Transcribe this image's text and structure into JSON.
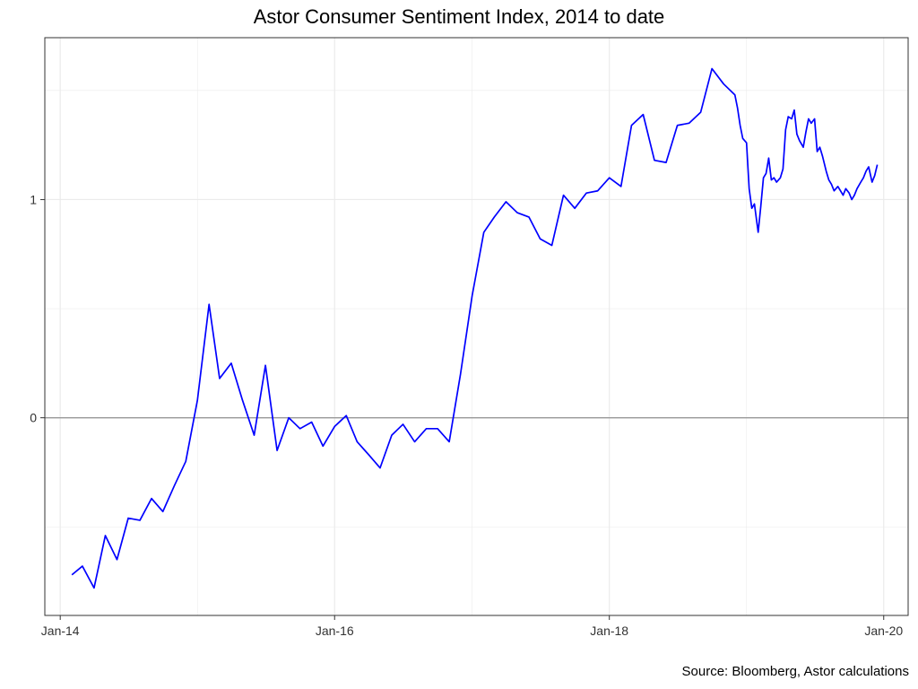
{
  "chart_data": {
    "type": "line",
    "title": "Astor Consumer Sentiment Index, 2014 to date",
    "source": "Source: Bloomberg, Astor calculations",
    "xlabel": "",
    "ylabel": "",
    "x_ticks": [
      {
        "label": "Jan-14",
        "date": "2014-01-01"
      },
      {
        "label": "Jan-16",
        "date": "2016-01-01"
      },
      {
        "label": "Jan-18",
        "date": "2018-01-01"
      },
      {
        "label": "Jan-20",
        "date": "2020-01-01"
      }
    ],
    "y_ticks": [
      {
        "label": "0",
        "value": 0
      },
      {
        "label": "1",
        "value": 1
      }
    ],
    "xlim": [
      "2013-11-21",
      "2020-03-06"
    ],
    "ylim": [
      -0.906,
      1.742
    ],
    "grid": true,
    "reference_line": 0,
    "colors": {
      "line": "#0000ff",
      "zero_line": "#999999",
      "grid": "#ebebeb",
      "axis": "#333333"
    },
    "series": [
      {
        "name": "",
        "x": [
          "2014-02-01",
          "2014-03-01",
          "2014-04-01",
          "2014-05-01",
          "2014-06-01",
          "2014-07-01",
          "2014-08-01",
          "2014-09-01",
          "2014-10-01",
          "2014-11-01",
          "2014-12-01",
          "2015-01-01",
          "2015-02-01",
          "2015-03-01",
          "2015-04-01",
          "2015-05-01",
          "2015-06-01",
          "2015-07-01",
          "2015-08-01",
          "2015-09-01",
          "2015-10-01",
          "2015-11-01",
          "2015-12-01",
          "2016-01-01",
          "2016-02-01",
          "2016-03-01",
          "2016-04-01",
          "2016-05-01",
          "2016-06-01",
          "2016-07-01",
          "2016-08-01",
          "2016-09-01",
          "2016-10-01",
          "2016-11-01",
          "2016-12-01",
          "2017-01-01",
          "2017-02-01",
          "2017-03-01",
          "2017-04-01",
          "2017-05-01",
          "2017-06-01",
          "2017-07-01",
          "2017-08-01",
          "2017-09-01",
          "2017-10-01",
          "2017-11-01",
          "2017-12-01",
          "2018-01-01",
          "2018-02-01",
          "2018-03-01",
          "2018-04-01",
          "2018-05-01",
          "2018-06-01",
          "2018-07-01",
          "2018-08-01",
          "2018-09-01",
          "2018-10-01",
          "2018-11-01",
          "2018-12-01",
          "2018-12-08",
          "2018-12-15",
          "2018-12-22",
          "2019-01-01",
          "2019-01-08",
          "2019-01-15",
          "2019-01-22",
          "2019-02-01",
          "2019-02-08",
          "2019-02-15",
          "2019-02-22",
          "2019-03-01",
          "2019-03-08",
          "2019-03-15",
          "2019-03-22",
          "2019-04-01",
          "2019-04-08",
          "2019-04-15",
          "2019-04-22",
          "2019-05-01",
          "2019-05-08",
          "2019-05-15",
          "2019-05-22",
          "2019-06-01",
          "2019-06-08",
          "2019-06-15",
          "2019-06-22",
          "2019-07-01",
          "2019-07-08",
          "2019-07-15",
          "2019-07-22",
          "2019-08-01",
          "2019-08-08",
          "2019-08-15",
          "2019-08-22",
          "2019-09-01",
          "2019-09-08",
          "2019-09-15",
          "2019-09-22",
          "2019-10-01",
          "2019-10-08",
          "2019-10-15",
          "2019-10-22",
          "2019-11-01",
          "2019-11-08",
          "2019-11-15",
          "2019-11-22",
          "2019-12-01",
          "2019-12-08",
          "2019-12-15"
        ],
        "y": [
          -0.72,
          -0.68,
          -0.78,
          -0.54,
          -0.65,
          -0.46,
          -0.47,
          -0.37,
          -0.43,
          -0.31,
          -0.2,
          0.08,
          0.52,
          0.18,
          0.25,
          0.08,
          -0.08,
          0.24,
          -0.15,
          0,
          -0.05,
          -0.02,
          -0.13,
          -0.04,
          0.01,
          -0.11,
          -0.17,
          -0.23,
          -0.08,
          -0.03,
          -0.11,
          -0.05,
          -0.05,
          -0.11,
          0.2,
          0.56,
          0.85,
          0.92,
          0.99,
          0.94,
          0.92,
          0.82,
          0.79,
          1.02,
          0.96,
          1.03,
          1.04,
          1.1,
          1.06,
          1.34,
          1.39,
          1.18,
          1.17,
          1.34,
          1.35,
          1.4,
          1.6,
          1.53,
          1.48,
          1.42,
          1.34,
          1.28,
          1.26,
          1.05,
          0.96,
          0.98,
          0.85,
          0.97,
          1.1,
          1.12,
          1.19,
          1.09,
          1.1,
          1.08,
          1.1,
          1.14,
          1.32,
          1.38,
          1.37,
          1.41,
          1.3,
          1.27,
          1.24,
          1.31,
          1.37,
          1.35,
          1.37,
          1.22,
          1.24,
          1.2,
          1.13,
          1.09,
          1.07,
          1.04,
          1.06,
          1.04,
          1.02,
          1.05,
          1.03,
          1,
          1.02,
          1.05,
          1.08,
          1.1,
          1.13,
          1.15,
          1.08,
          1.11,
          1.16
        ]
      }
    ]
  }
}
